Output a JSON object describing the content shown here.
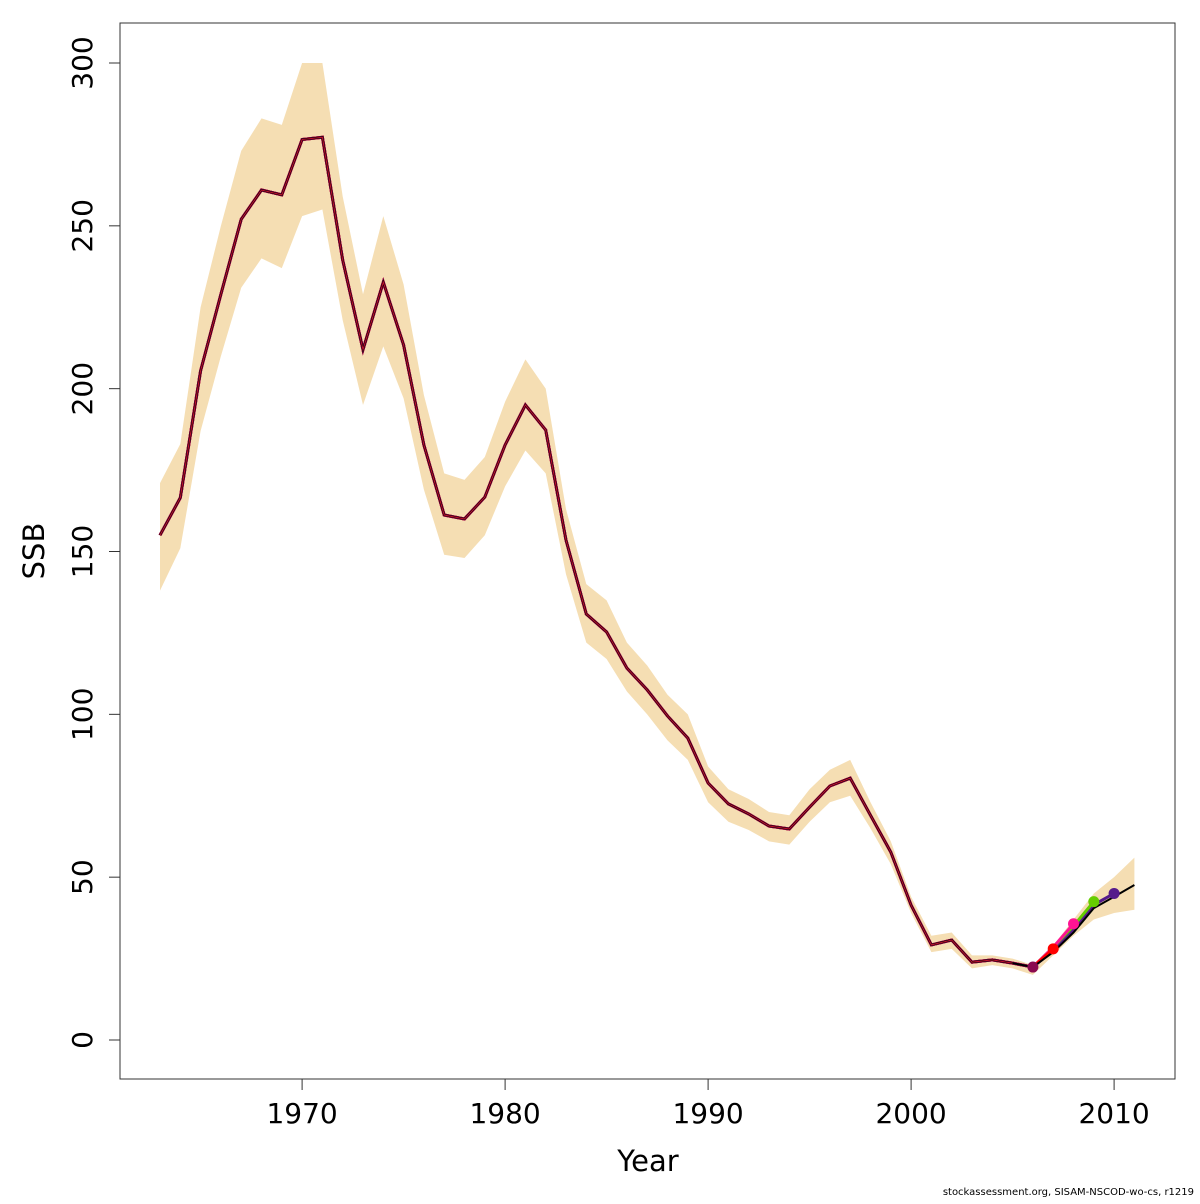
{
  "chart_data": {
    "type": "line",
    "title": "",
    "xlabel": "Year",
    "ylabel": "SSB",
    "xlim": [
      1961,
      2012.3
    ],
    "ylim": [
      -12,
      312
    ],
    "xticks": [
      1970,
      1980,
      1990,
      2000,
      2010
    ],
    "yticks": [
      0,
      50,
      100,
      150,
      200,
      250,
      300
    ],
    "grid": false,
    "years": [
      1963,
      1964,
      1965,
      1966,
      1967,
      1968,
      1969,
      1970,
      1971,
      1972,
      1973,
      1974,
      1975,
      1976,
      1977,
      1978,
      1979,
      1980,
      1981,
      1982,
      1983,
      1984,
      1985,
      1986,
      1987,
      1988,
      1989,
      1990,
      1991,
      1992,
      1993,
      1994,
      1995,
      1996,
      1997,
      1998,
      1999,
      2000,
      2001,
      2002,
      2003,
      2004,
      2005,
      2006,
      2007,
      2008,
      2009,
      2010,
      2011
    ],
    "ssb": [
      155,
      166.5,
      205.5,
      229,
      252,
      261,
      259.5,
      276.5,
      277.2,
      239.5,
      212,
      232.7,
      213.4,
      182.7,
      161.2,
      160,
      166.7,
      182.7,
      195,
      187.3,
      153.5,
      130.8,
      125.3,
      114.2,
      107.5,
      99.5,
      92.7,
      78.9,
      72.5,
      69.4,
      65.7,
      64.8,
      71.5,
      78,
      80.4,
      69,
      57.7,
      41.4,
      29.2,
      30.7,
      23.9,
      24.6,
      23.6,
      22.4,
      27,
      33,
      40.5,
      44,
      47.6
    ],
    "ci_upper": [
      171,
      183,
      225,
      250,
      273,
      283,
      281,
      300,
      300,
      259,
      229,
      253,
      232,
      198,
      174,
      172,
      179,
      196,
      209,
      200,
      163,
      140,
      135,
      122,
      115,
      106,
      100,
      84,
      77,
      74,
      70,
      69,
      77,
      83,
      86,
      73,
      61,
      44,
      32,
      33,
      26,
      26,
      25,
      23,
      29,
      37,
      45,
      50,
      56
    ],
    "ci_lower": [
      138,
      151,
      187,
      210,
      231,
      240,
      237,
      253,
      255,
      221,
      195,
      213,
      197,
      169,
      149,
      148,
      155,
      170,
      181,
      174,
      143,
      122,
      117,
      107,
      100,
      92,
      86,
      73,
      67,
      64.5,
      61,
      60,
      67,
      73,
      75,
      65,
      54,
      39,
      27,
      28,
      22,
      23,
      22,
      20,
      26,
      32,
      37,
      39,
      40
    ],
    "band_color": "#F5DEB3",
    "main_color": "#000000",
    "retro_series": [
      {
        "name": "2006",
        "color": "#8B0A50",
        "tail_years": [
          2006
        ],
        "tail_values": [
          22.4
        ]
      },
      {
        "name": "2007",
        "color": "#FF0000",
        "tail_years": [
          2006,
          2007
        ],
        "tail_values": [
          22.4,
          28
        ]
      },
      {
        "name": "2008",
        "color": "#FF1493",
        "tail_years": [
          2006,
          2007,
          2008
        ],
        "tail_values": [
          22.4,
          28.5,
          35.7
        ]
      },
      {
        "name": "2009",
        "color": "#66CD00",
        "tail_years": [
          2006,
          2007,
          2008,
          2009
        ],
        "tail_values": [
          22.4,
          28.5,
          35,
          42.5
        ]
      },
      {
        "name": "2010",
        "color": "#551A8B",
        "tail_years": [
          2006,
          2007,
          2008,
          2009,
          2010
        ],
        "tail_values": [
          22.4,
          27.5,
          34,
          41.5,
          45
        ]
      }
    ]
  },
  "footer": "stockassessment.org, SISAM-NSCOD-wo-cs, r1219"
}
